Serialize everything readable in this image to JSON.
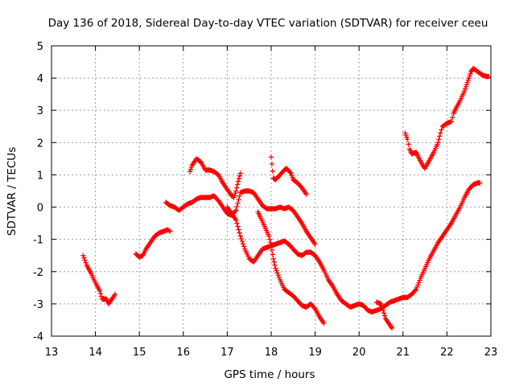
{
  "chart_data": {
    "type": "scatter",
    "title": "Day 136 of 2018, Sidereal Day-to-day VTEC variation (SDTVAR) for receiver ceeu",
    "xlabel": "GPS time / hours",
    "ylabel": "SDTVAR / TECUs",
    "xlim": [
      13,
      23
    ],
    "ylim": [
      -4,
      5
    ],
    "xticks": [
      13,
      14,
      15,
      16,
      17,
      18,
      19,
      20,
      21,
      22,
      23
    ],
    "yticks": [
      -4,
      -3,
      -2,
      -1,
      0,
      1,
      2,
      3,
      4,
      5
    ],
    "grid": true,
    "marker": "+",
    "color": "#ff0000",
    "series": [
      {
        "points": [
          [
            13.72,
            -1.5
          ],
          [
            13.8,
            -1.8
          ],
          [
            13.9,
            -2.05
          ],
          [
            14.0,
            -2.35
          ],
          [
            14.1,
            -2.6
          ],
          [
            14.15,
            -2.85
          ],
          [
            14.25,
            -2.85
          ],
          [
            14.3,
            -3.0
          ],
          [
            14.4,
            -2.8
          ],
          [
            14.45,
            -2.7
          ]
        ]
      },
      {
        "points": [
          [
            14.92,
            -1.45
          ],
          [
            15.0,
            -1.55
          ],
          [
            15.08,
            -1.5
          ],
          [
            15.15,
            -1.3
          ],
          [
            15.25,
            -1.1
          ],
          [
            15.35,
            -0.9
          ],
          [
            15.45,
            -0.8
          ],
          [
            15.55,
            -0.75
          ],
          [
            15.65,
            -0.7
          ],
          [
            15.7,
            -0.75
          ]
        ]
      },
      {
        "points": [
          [
            15.6,
            0.15
          ],
          [
            15.7,
            0.05
          ],
          [
            15.8,
            0.0
          ],
          [
            15.9,
            -0.1
          ],
          [
            16.0,
            0.0
          ],
          [
            16.1,
            0.1
          ],
          [
            16.2,
            0.15
          ],
          [
            16.3,
            0.25
          ],
          [
            16.4,
            0.3
          ],
          [
            16.5,
            0.3
          ],
          [
            16.6,
            0.3
          ],
          [
            16.7,
            0.35
          ],
          [
            16.8,
            0.2
          ],
          [
            16.9,
            0.0
          ],
          [
            17.0,
            -0.2
          ],
          [
            17.1,
            -0.25
          ],
          [
            17.2,
            -0.1
          ],
          [
            17.3,
            0.45
          ],
          [
            17.4,
            0.5
          ],
          [
            17.5,
            0.5
          ],
          [
            17.6,
            0.45
          ],
          [
            17.7,
            0.25
          ],
          [
            17.8,
            0.05
          ],
          [
            17.9,
            -0.05
          ],
          [
            18.0,
            -0.05
          ],
          [
            18.1,
            -0.05
          ],
          [
            18.2,
            0.0
          ],
          [
            18.3,
            -0.05
          ],
          [
            18.4,
            0.0
          ],
          [
            18.5,
            -0.1
          ],
          [
            18.6,
            -0.3
          ],
          [
            18.7,
            -0.5
          ],
          [
            18.8,
            -0.75
          ],
          [
            18.9,
            -0.95
          ],
          [
            19.0,
            -1.15
          ]
        ]
      },
      {
        "points": [
          [
            16.15,
            1.1
          ],
          [
            16.2,
            1.3
          ],
          [
            16.3,
            1.5
          ],
          [
            16.4,
            1.4
          ],
          [
            16.5,
            1.15
          ],
          [
            16.6,
            1.15
          ],
          [
            16.7,
            1.1
          ],
          [
            16.8,
            1.0
          ],
          [
            16.9,
            0.75
          ],
          [
            17.0,
            0.55
          ],
          [
            17.1,
            0.35
          ],
          [
            17.15,
            0.3
          ],
          [
            17.2,
            0.5
          ],
          [
            17.25,
            0.8
          ],
          [
            17.3,
            1.05
          ]
        ]
      },
      {
        "points": [
          [
            17.0,
            0.0
          ],
          [
            17.1,
            -0.2
          ],
          [
            17.2,
            -0.4
          ],
          [
            17.3,
            -0.9
          ],
          [
            17.4,
            -1.3
          ],
          [
            17.5,
            -1.6
          ],
          [
            17.6,
            -1.7
          ],
          [
            17.7,
            -1.5
          ],
          [
            17.8,
            -1.3
          ],
          [
            17.9,
            -1.25
          ],
          [
            18.0,
            -1.2
          ],
          [
            18.1,
            -1.15
          ],
          [
            18.2,
            -1.1
          ],
          [
            18.3,
            -1.05
          ],
          [
            18.4,
            -1.15
          ],
          [
            18.5,
            -1.3
          ],
          [
            18.6,
            -1.45
          ],
          [
            18.7,
            -1.5
          ],
          [
            18.8,
            -1.4
          ],
          [
            18.9,
            -1.4
          ],
          [
            19.0,
            -1.5
          ],
          [
            19.1,
            -1.7
          ],
          [
            19.2,
            -1.95
          ],
          [
            19.3,
            -2.25
          ],
          [
            19.4,
            -2.45
          ],
          [
            19.5,
            -2.7
          ],
          [
            19.6,
            -2.9
          ],
          [
            19.7,
            -3.0
          ],
          [
            19.8,
            -3.1
          ],
          [
            19.9,
            -3.05
          ],
          [
            20.0,
            -3.0
          ],
          [
            20.1,
            -3.05
          ],
          [
            20.2,
            -3.2
          ],
          [
            20.3,
            -3.25
          ],
          [
            20.4,
            -3.2
          ],
          [
            20.5,
            -3.15
          ],
          [
            20.6,
            -3.05
          ],
          [
            20.7,
            -2.95
          ],
          [
            20.8,
            -2.9
          ],
          [
            20.9,
            -2.85
          ],
          [
            21.0,
            -2.8
          ],
          [
            21.1,
            -2.8
          ],
          [
            21.2,
            -2.7
          ],
          [
            21.3,
            -2.55
          ],
          [
            21.4,
            -2.2
          ],
          [
            21.5,
            -1.9
          ],
          [
            21.6,
            -1.6
          ],
          [
            21.7,
            -1.35
          ],
          [
            21.8,
            -1.1
          ],
          [
            21.9,
            -0.9
          ],
          [
            22.0,
            -0.7
          ],
          [
            22.1,
            -0.5
          ],
          [
            22.2,
            -0.25
          ],
          [
            22.3,
            0.0
          ],
          [
            22.4,
            0.3
          ],
          [
            22.5,
            0.55
          ],
          [
            22.6,
            0.7
          ],
          [
            22.7,
            0.75
          ],
          [
            22.75,
            0.75
          ]
        ]
      },
      {
        "points": [
          [
            17.7,
            -0.15
          ],
          [
            17.75,
            -0.3
          ],
          [
            17.85,
            -0.6
          ],
          [
            17.95,
            -0.9
          ],
          [
            18.0,
            -1.2
          ],
          [
            18.05,
            -1.6
          ],
          [
            18.1,
            -1.9
          ],
          [
            18.2,
            -2.25
          ],
          [
            18.3,
            -2.55
          ],
          [
            18.4,
            -2.65
          ],
          [
            18.5,
            -2.75
          ],
          [
            18.6,
            -2.9
          ],
          [
            18.7,
            -3.05
          ],
          [
            18.8,
            -3.1
          ],
          [
            18.9,
            -3.0
          ],
          [
            19.0,
            -3.15
          ],
          [
            19.1,
            -3.4
          ],
          [
            19.2,
            -3.6
          ]
        ]
      },
      {
        "points": [
          [
            18.0,
            1.55
          ],
          [
            18.05,
            0.9
          ],
          [
            18.1,
            0.85
          ],
          [
            18.2,
            1.0
          ],
          [
            18.3,
            1.15
          ],
          [
            18.35,
            1.2
          ],
          [
            18.45,
            1.05
          ],
          [
            18.5,
            0.85
          ],
          [
            18.6,
            0.75
          ],
          [
            18.7,
            0.6
          ],
          [
            18.8,
            0.4
          ]
        ]
      },
      {
        "points": [
          [
            20.4,
            -2.95
          ],
          [
            20.5,
            -3.0
          ],
          [
            20.55,
            -3.2
          ],
          [
            20.6,
            -3.45
          ],
          [
            20.7,
            -3.65
          ],
          [
            20.75,
            -3.75
          ]
        ]
      },
      {
        "points": [
          [
            21.05,
            2.3
          ],
          [
            21.1,
            2.1
          ],
          [
            21.15,
            1.8
          ],
          [
            21.2,
            1.65
          ],
          [
            21.3,
            1.7
          ],
          [
            21.35,
            1.55
          ],
          [
            21.45,
            1.3
          ],
          [
            21.5,
            1.2
          ],
          [
            21.6,
            1.45
          ],
          [
            21.7,
            1.7
          ],
          [
            21.8,
            2.0
          ],
          [
            21.85,
            2.3
          ],
          [
            21.9,
            2.5
          ],
          [
            22.0,
            2.6
          ],
          [
            22.1,
            2.65
          ],
          [
            22.15,
            2.9
          ],
          [
            22.2,
            3.05
          ],
          [
            22.3,
            3.3
          ],
          [
            22.4,
            3.6
          ],
          [
            22.45,
            3.8
          ],
          [
            22.5,
            4.0
          ],
          [
            22.55,
            4.2
          ],
          [
            22.6,
            4.3
          ],
          [
            22.7,
            4.2
          ],
          [
            22.8,
            4.1
          ],
          [
            22.9,
            4.05
          ],
          [
            22.95,
            4.05
          ]
        ]
      }
    ]
  }
}
